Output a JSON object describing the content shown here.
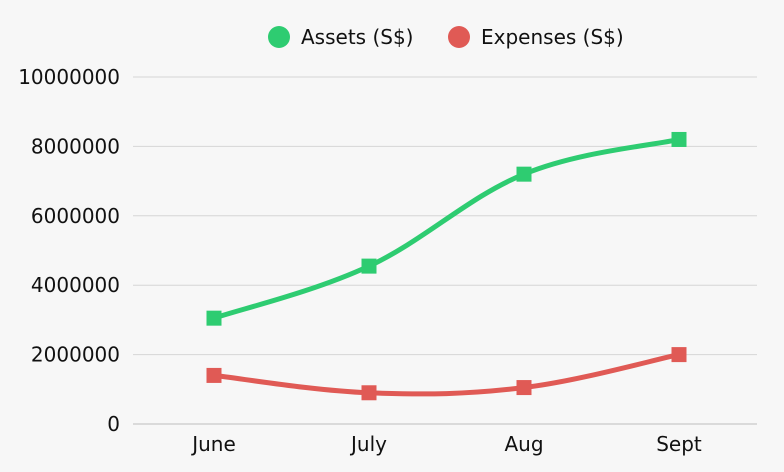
{
  "chart_data": {
    "type": "line",
    "categories": [
      "June",
      "July",
      "Aug",
      "Sept"
    ],
    "series": [
      {
        "name": "Assets (S$)",
        "color": "#2ecc71",
        "values": [
          3050000,
          4550000,
          7200000,
          8200000
        ]
      },
      {
        "name": "Expenses (S$)",
        "color": "#e05a55",
        "values": [
          1400000,
          900000,
          1050000,
          2000000
        ]
      }
    ],
    "ylim": [
      0,
      10000000
    ],
    "yticks": [
      "0",
      "2000000",
      "4000000",
      "6000000",
      "8000000",
      "10000000"
    ],
    "grid": true,
    "legend_position": "top-center",
    "title": "",
    "xlabel": "",
    "ylabel": ""
  }
}
